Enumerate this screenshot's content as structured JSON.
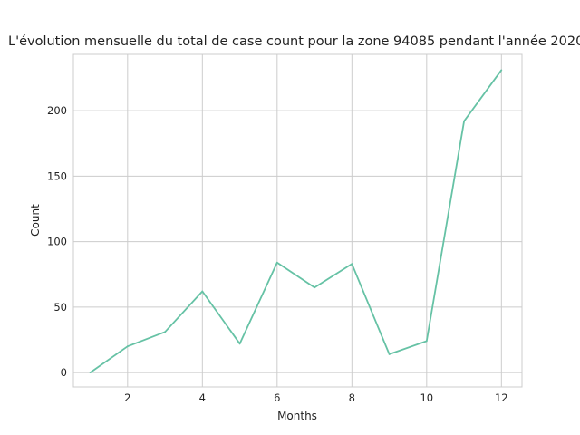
{
  "chart_data": {
    "type": "line",
    "title": "L'évolution mensuelle du total de case count pour la zone 94085 pendant l'année 2020",
    "xlabel": "Months",
    "ylabel": "Count",
    "x": [
      1,
      2,
      3,
      4,
      5,
      6,
      7,
      8,
      9,
      10,
      11,
      12
    ],
    "series": [
      {
        "values": [
          0,
          20,
          31,
          62,
          22,
          84,
          65,
          83,
          14,
          24,
          192,
          231
        ]
      }
    ],
    "xlim": [
      0.55,
      12.55
    ],
    "ylim": [
      -11,
      243
    ],
    "xticks": [
      2,
      4,
      6,
      8,
      10,
      12
    ],
    "yticks": [
      0,
      50,
      100,
      150,
      200
    ],
    "grid": true,
    "line_color": "#66c2a5"
  }
}
